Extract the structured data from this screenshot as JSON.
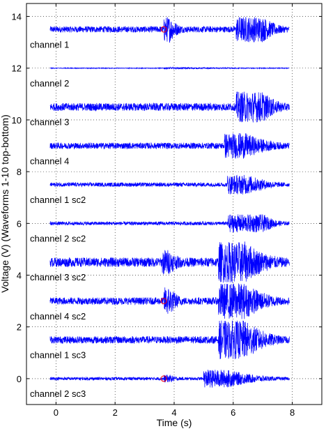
{
  "chart_data": {
    "type": "line",
    "title": "",
    "xlabel": "Time (s)",
    "ylabel": "Voltage (V) (Waveforms 1-10 top-bottom)",
    "xlim": [
      -1,
      9
    ],
    "ylim": [
      -1,
      14.5
    ],
    "x_ticks": [
      "0",
      "2",
      "4",
      "6",
      "8"
    ],
    "y_ticks": [
      "0",
      "2",
      "4",
      "6",
      "8",
      "10",
      "12",
      "14"
    ],
    "grid": true,
    "grid_style": "dotted",
    "line_color": "#0000ff",
    "marker_color": "#ff0000",
    "series": [
      {
        "name": "channel 1",
        "offset": 13.5,
        "noise_amp": 0.12,
        "bursts": [
          {
            "start": 3.65,
            "end": 3.85,
            "amp": 0.5,
            "decay_to": 4.4
          },
          {
            "start": 6.1,
            "end": 7.0,
            "amp": 0.5,
            "decay_to": 7.9
          }
        ],
        "marker_t": 3.65
      },
      {
        "name": "channel 2",
        "offset": 12.0,
        "noise_amp": 0.015,
        "bursts": [
          {
            "start": 3.65,
            "end": 3.7,
            "amp": 0.04,
            "decay_to": 7.9
          }
        ],
        "marker_t": null
      },
      {
        "name": "channel 3",
        "offset": 10.5,
        "noise_amp": 0.15,
        "bursts": [
          {
            "start": 6.1,
            "end": 7.0,
            "amp": 0.6,
            "decay_to": 7.9
          }
        ],
        "marker_t": null
      },
      {
        "name": "channel 4",
        "offset": 9.0,
        "noise_amp": 0.12,
        "bursts": [
          {
            "start": 5.7,
            "end": 6.4,
            "amp": 0.5,
            "decay_to": 7.9
          }
        ],
        "marker_t": null
      },
      {
        "name": "channel 1 sc2",
        "offset": 7.5,
        "noise_amp": 0.08,
        "bursts": [
          {
            "start": 5.8,
            "end": 6.5,
            "amp": 0.38,
            "decay_to": 7.9
          }
        ],
        "marker_t": null
      },
      {
        "name": "channel 2 sc2",
        "offset": 6.0,
        "noise_amp": 0.07,
        "bursts": [
          {
            "start": 5.8,
            "end": 7.0,
            "amp": 0.35,
            "decay_to": 7.9
          }
        ],
        "marker_t": null
      },
      {
        "name": "channel 3 sc2",
        "offset": 4.5,
        "noise_amp": 0.18,
        "bursts": [
          {
            "start": 3.6,
            "end": 3.8,
            "amp": 0.5,
            "decay_to": 4.4
          },
          {
            "start": 5.5,
            "end": 6.4,
            "amp": 0.8,
            "decay_to": 7.9
          }
        ],
        "marker_t": null
      },
      {
        "name": "channel 4 sc2",
        "offset": 3.0,
        "noise_amp": 0.14,
        "bursts": [
          {
            "start": 3.65,
            "end": 3.85,
            "amp": 0.55,
            "decay_to": 4.4
          },
          {
            "start": 5.5,
            "end": 6.4,
            "amp": 0.7,
            "decay_to": 7.9
          }
        ],
        "marker_t": 3.65
      },
      {
        "name": "channel 1 sc3",
        "offset": 1.5,
        "noise_amp": 0.14,
        "bursts": [
          {
            "start": 5.5,
            "end": 6.4,
            "amp": 0.75,
            "decay_to": 7.9
          }
        ],
        "marker_t": null
      },
      {
        "name": "channel 2 sc3",
        "offset": 0.0,
        "noise_amp": 0.06,
        "bursts": [
          {
            "start": 3.65,
            "end": 3.85,
            "amp": 0.15,
            "decay_to": 4.3
          },
          {
            "start": 5.0,
            "end": 5.8,
            "amp": 0.35,
            "decay_to": 7.9
          }
        ],
        "marker_t": 3.65
      }
    ],
    "t_start": -0.2,
    "t_end": 7.9
  }
}
